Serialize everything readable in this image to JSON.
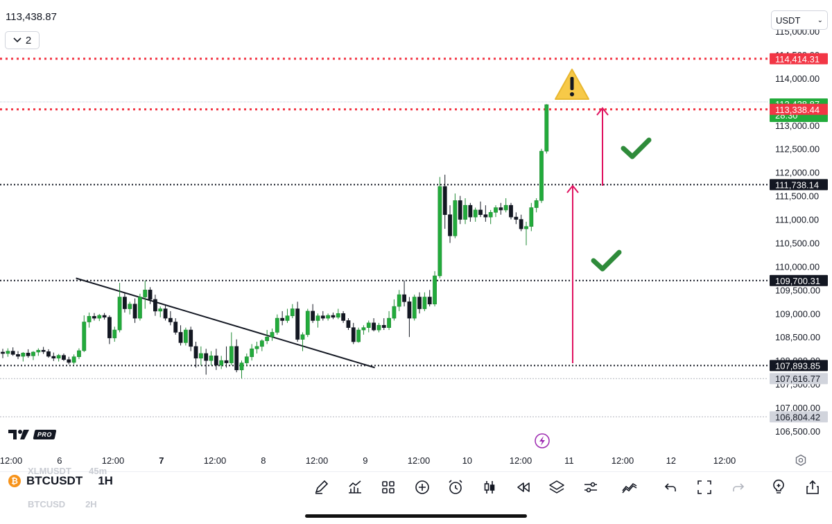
{
  "header": {
    "last_price": "113,438.87",
    "collapse_count": "2",
    "currency": "USDT"
  },
  "symbol": {
    "ticker": "BTCUSDT",
    "timeframe": "1H",
    "ghost_above": "XLMUSDT",
    "ghost_above_tf": "45m",
    "ghost_below": "BTCUSD",
    "ghost_below_tf": "2H"
  },
  "branding": {
    "pro_label": "PRO"
  },
  "price_axis": {
    "ticks": [
      "115,000.00",
      "114,500.00",
      "114,000.00",
      "113,500.00",
      "113,000.00",
      "112,500.00",
      "112,000.00",
      "111,500.00",
      "111,000.00",
      "110,500.00",
      "110,000.00",
      "109,500.00",
      "109,000.00",
      "108,500.00",
      "108,000.00",
      "107,500.00",
      "107,000.00",
      "106,500.00"
    ],
    "tick_values": [
      115000,
      114500,
      114000,
      113500,
      113000,
      112500,
      112000,
      111500,
      111000,
      110500,
      110000,
      109500,
      109000,
      108500,
      108000,
      107500,
      107000,
      106500
    ]
  },
  "time_axis": {
    "labels": [
      "12:00",
      "6",
      "12:00",
      "7",
      "12:00",
      "8",
      "12:00",
      "9",
      "12:00",
      "10",
      "12:00",
      "11",
      "12:00",
      "12",
      "12:00"
    ],
    "bold": [
      false,
      false,
      false,
      true,
      false,
      false,
      false,
      false,
      false,
      false,
      false,
      false,
      false,
      false,
      false
    ]
  },
  "price_labels": [
    {
      "text": "114,414.31",
      "value": 114414.31,
      "bg": "#f23645",
      "fg": "#ffffff"
    },
    {
      "text": "113,438.87",
      "value": 113438.87,
      "bg": "#22ab3b",
      "fg": "#ffffff",
      "sub": "28:30"
    },
    {
      "text": "113,338.44",
      "value": 113338.44,
      "bg": "#f23645",
      "fg": "#ffffff"
    },
    {
      "text": "111,738.14",
      "value": 111738.14,
      "bg": "#131722",
      "fg": "#ffffff"
    },
    {
      "text": "109,700.31",
      "value": 109700.31,
      "bg": "#131722",
      "fg": "#ffffff"
    },
    {
      "text": "107,893.85",
      "value": 107893.85,
      "bg": "#131722",
      "fg": "#ffffff"
    },
    {
      "text": "107,616.77",
      "value": 107616.77,
      "bg": "#d1d4dc",
      "fg": "#131722"
    },
    {
      "text": "106,804.42",
      "value": 106804.42,
      "bg": "#d1d4dc",
      "fg": "#131722"
    }
  ],
  "colors": {
    "up": "#22ab3b",
    "down": "#131722",
    "red_line": "#f23645",
    "arrow": "#e0115f",
    "check": "#2e8b3a",
    "warning": "#f7c948"
  },
  "icons": [
    "pen-icon",
    "indicators-icon",
    "layout-icon",
    "add-icon",
    "alarm-icon",
    "candles-icon",
    "replay-icon",
    "layers-icon",
    "settings-sliders-icon",
    "chart-type-icon",
    "undo-icon",
    "fullscreen-icon",
    "redo-icon",
    "lightbulb-icon",
    "share-icon"
  ],
  "chart_data": {
    "type": "candlestick",
    "title": "",
    "symbol": "BTCUSDT",
    "timeframe": "1H",
    "ylim": [
      106500,
      115000
    ],
    "last_price": 113438.87,
    "countdown": "28:30",
    "horizontal_levels": [
      {
        "value": 114414.31,
        "style": "red-dotted"
      },
      {
        "value": 113338.44,
        "style": "red-dotted"
      },
      {
        "value": 111738.14,
        "style": "black-dotted"
      },
      {
        "value": 109700.31,
        "style": "black-dotted"
      },
      {
        "value": 107893.85,
        "style": "black-dotted"
      }
    ],
    "trendline": {
      "from": [
        5.6,
        109750
      ],
      "to": [
        8.05,
        107850
      ]
    },
    "annotations": [
      "warning-sign",
      "check-mark",
      "check-mark",
      "up-arrow",
      "up-arrow",
      "lightning"
    ],
    "candles": [
      {
        "o": 108180,
        "h": 108250,
        "l": 108050,
        "c": 108150
      },
      {
        "o": 108150,
        "h": 108260,
        "l": 108080,
        "c": 108200
      },
      {
        "o": 108200,
        "h": 108280,
        "l": 108100,
        "c": 108130
      },
      {
        "o": 108130,
        "h": 108200,
        "l": 108030,
        "c": 108090
      },
      {
        "o": 108090,
        "h": 108180,
        "l": 107980,
        "c": 108160
      },
      {
        "o": 108160,
        "h": 108240,
        "l": 108060,
        "c": 108100
      },
      {
        "o": 108100,
        "h": 108200,
        "l": 108010,
        "c": 108180
      },
      {
        "o": 108180,
        "h": 108260,
        "l": 108100,
        "c": 108220
      },
      {
        "o": 108220,
        "h": 108290,
        "l": 108140,
        "c": 108190
      },
      {
        "o": 108190,
        "h": 108240,
        "l": 108060,
        "c": 108090
      },
      {
        "o": 108090,
        "h": 108170,
        "l": 107990,
        "c": 108050
      },
      {
        "o": 108050,
        "h": 108140,
        "l": 107980,
        "c": 108110
      },
      {
        "o": 108110,
        "h": 108150,
        "l": 107990,
        "c": 108020
      },
      {
        "o": 108020,
        "h": 108080,
        "l": 107920,
        "c": 107960
      },
      {
        "o": 107960,
        "h": 108130,
        "l": 107920,
        "c": 108080
      },
      {
        "o": 108080,
        "h": 108260,
        "l": 108030,
        "c": 108210
      },
      {
        "o": 108210,
        "h": 108960,
        "l": 108180,
        "c": 108820
      },
      {
        "o": 108820,
        "h": 109020,
        "l": 108700,
        "c": 108940
      },
      {
        "o": 108940,
        "h": 109010,
        "l": 108850,
        "c": 108900
      },
      {
        "o": 108900,
        "h": 108990,
        "l": 108840,
        "c": 108960
      },
      {
        "o": 108960,
        "h": 109010,
        "l": 108870,
        "c": 108920
      },
      {
        "o": 108920,
        "h": 108960,
        "l": 108350,
        "c": 108480
      },
      {
        "o": 108480,
        "h": 108720,
        "l": 108400,
        "c": 108650
      },
      {
        "o": 108650,
        "h": 109650,
        "l": 108600,
        "c": 109350
      },
      {
        "o": 109350,
        "h": 109450,
        "l": 109020,
        "c": 109100
      },
      {
        "o": 109100,
        "h": 109250,
        "l": 108980,
        "c": 109200
      },
      {
        "o": 109200,
        "h": 109320,
        "l": 108800,
        "c": 108900
      },
      {
        "o": 108900,
        "h": 109420,
        "l": 108850,
        "c": 109350
      },
      {
        "o": 109350,
        "h": 109700,
        "l": 109100,
        "c": 109500
      },
      {
        "o": 109500,
        "h": 109560,
        "l": 109200,
        "c": 109300
      },
      {
        "o": 109300,
        "h": 109400,
        "l": 108950,
        "c": 109050
      },
      {
        "o": 109050,
        "h": 109150,
        "l": 108920,
        "c": 109100
      },
      {
        "o": 109100,
        "h": 109180,
        "l": 108850,
        "c": 108900
      },
      {
        "o": 108900,
        "h": 109050,
        "l": 108750,
        "c": 108820
      },
      {
        "o": 108820,
        "h": 108900,
        "l": 108550,
        "c": 108600
      },
      {
        "o": 108600,
        "h": 108750,
        "l": 108320,
        "c": 108380
      },
      {
        "o": 108380,
        "h": 108700,
        "l": 108320,
        "c": 108650
      },
      {
        "o": 108650,
        "h": 108720,
        "l": 108200,
        "c": 108300
      },
      {
        "o": 108300,
        "h": 108400,
        "l": 107850,
        "c": 108050
      },
      {
        "o": 108050,
        "h": 108300,
        "l": 107900,
        "c": 108150
      },
      {
        "o": 108150,
        "h": 108250,
        "l": 107700,
        "c": 108000
      },
      {
        "o": 108000,
        "h": 108200,
        "l": 107900,
        "c": 108100
      },
      {
        "o": 108100,
        "h": 108250,
        "l": 107800,
        "c": 107900
      },
      {
        "o": 107900,
        "h": 108100,
        "l": 107820,
        "c": 108000
      },
      {
        "o": 108000,
        "h": 108300,
        "l": 107850,
        "c": 107950
      },
      {
        "o": 107950,
        "h": 108600,
        "l": 107900,
        "c": 108300
      },
      {
        "o": 108300,
        "h": 108450,
        "l": 107750,
        "c": 107800
      },
      {
        "o": 107800,
        "h": 108000,
        "l": 107620,
        "c": 107950
      },
      {
        "o": 107950,
        "h": 108150,
        "l": 107880,
        "c": 108080
      },
      {
        "o": 108080,
        "h": 108350,
        "l": 108000,
        "c": 108250
      },
      {
        "o": 108250,
        "h": 108400,
        "l": 108150,
        "c": 108300
      },
      {
        "o": 108300,
        "h": 108450,
        "l": 108200,
        "c": 108420
      },
      {
        "o": 108420,
        "h": 108650,
        "l": 108350,
        "c": 108500
      },
      {
        "o": 108500,
        "h": 108680,
        "l": 108420,
        "c": 108600
      },
      {
        "o": 108600,
        "h": 108980,
        "l": 108550,
        "c": 108900
      },
      {
        "o": 108900,
        "h": 109050,
        "l": 108750,
        "c": 108850
      },
      {
        "o": 108850,
        "h": 109100,
        "l": 108800,
        "c": 108950
      },
      {
        "o": 108950,
        "h": 109200,
        "l": 108900,
        "c": 109100
      },
      {
        "o": 109100,
        "h": 109250,
        "l": 108400,
        "c": 108450
      },
      {
        "o": 108450,
        "h": 108600,
        "l": 108200,
        "c": 108550
      },
      {
        "o": 108550,
        "h": 109100,
        "l": 108500,
        "c": 109050
      },
      {
        "o": 109050,
        "h": 109200,
        "l": 108800,
        "c": 108850
      },
      {
        "o": 108850,
        "h": 109000,
        "l": 108700,
        "c": 108950
      },
      {
        "o": 108950,
        "h": 109050,
        "l": 108850,
        "c": 108900
      },
      {
        "o": 108900,
        "h": 109000,
        "l": 108850,
        "c": 108960
      },
      {
        "o": 108960,
        "h": 109020,
        "l": 108880,
        "c": 108920
      },
      {
        "o": 108920,
        "h": 109100,
        "l": 108880,
        "c": 109000
      },
      {
        "o": 109000,
        "h": 109050,
        "l": 108800,
        "c": 108850
      },
      {
        "o": 108850,
        "h": 108900,
        "l": 108650,
        "c": 108700
      },
      {
        "o": 108700,
        "h": 108800,
        "l": 108350,
        "c": 108400
      },
      {
        "o": 108400,
        "h": 108700,
        "l": 108380,
        "c": 108650
      },
      {
        "o": 108650,
        "h": 108750,
        "l": 108550,
        "c": 108700
      },
      {
        "o": 108700,
        "h": 108850,
        "l": 108600,
        "c": 108800
      },
      {
        "o": 108800,
        "h": 108900,
        "l": 108620,
        "c": 108650
      },
      {
        "o": 108650,
        "h": 108800,
        "l": 108600,
        "c": 108750
      },
      {
        "o": 108750,
        "h": 108900,
        "l": 108650,
        "c": 108700
      },
      {
        "o": 108700,
        "h": 109050,
        "l": 108650,
        "c": 108900
      },
      {
        "o": 108900,
        "h": 109300,
        "l": 108850,
        "c": 109150
      },
      {
        "o": 109150,
        "h": 109500,
        "l": 109050,
        "c": 109400
      },
      {
        "o": 109400,
        "h": 109700,
        "l": 109150,
        "c": 109250
      },
      {
        "o": 109250,
        "h": 109350,
        "l": 108500,
        "c": 108900
      },
      {
        "o": 108900,
        "h": 109400,
        "l": 108850,
        "c": 109350
      },
      {
        "o": 109350,
        "h": 109450,
        "l": 109000,
        "c": 109100
      },
      {
        "o": 109100,
        "h": 109450,
        "l": 109050,
        "c": 109350
      },
      {
        "o": 109350,
        "h": 109500,
        "l": 109150,
        "c": 109200
      },
      {
        "o": 109200,
        "h": 109900,
        "l": 109150,
        "c": 109800
      },
      {
        "o": 109800,
        "h": 111900,
        "l": 109750,
        "c": 111700
      },
      {
        "o": 111700,
        "h": 111950,
        "l": 110800,
        "c": 111100
      },
      {
        "o": 111100,
        "h": 111300,
        "l": 110500,
        "c": 110650
      },
      {
        "o": 110650,
        "h": 111550,
        "l": 110600,
        "c": 111400
      },
      {
        "o": 111400,
        "h": 111500,
        "l": 110900,
        "c": 111000
      },
      {
        "o": 111000,
        "h": 111450,
        "l": 110900,
        "c": 111300
      },
      {
        "o": 111300,
        "h": 111350,
        "l": 110950,
        "c": 111050
      },
      {
        "o": 111050,
        "h": 111250,
        "l": 110950,
        "c": 111200
      },
      {
        "o": 111200,
        "h": 111380,
        "l": 111050,
        "c": 111100
      },
      {
        "o": 111100,
        "h": 111300,
        "l": 110950,
        "c": 111050
      },
      {
        "o": 111050,
        "h": 111200,
        "l": 110900,
        "c": 111150
      },
      {
        "o": 111150,
        "h": 111300,
        "l": 111050,
        "c": 111250
      },
      {
        "o": 111250,
        "h": 111350,
        "l": 111100,
        "c": 111200
      },
      {
        "o": 111200,
        "h": 111450,
        "l": 111150,
        "c": 111300
      },
      {
        "o": 111300,
        "h": 111350,
        "l": 111000,
        "c": 111050
      },
      {
        "o": 111050,
        "h": 111150,
        "l": 110900,
        "c": 111000
      },
      {
        "o": 111000,
        "h": 111100,
        "l": 110750,
        "c": 110800
      },
      {
        "o": 110800,
        "h": 110950,
        "l": 110450,
        "c": 110850
      },
      {
        "o": 110850,
        "h": 111350,
        "l": 110750,
        "c": 111250
      },
      {
        "o": 111250,
        "h": 111450,
        "l": 111150,
        "c": 111400
      },
      {
        "o": 111400,
        "h": 112500,
        "l": 111350,
        "c": 112450
      },
      {
        "o": 112450,
        "h": 113450,
        "l": 112400,
        "c": 113438.87
      }
    ]
  }
}
